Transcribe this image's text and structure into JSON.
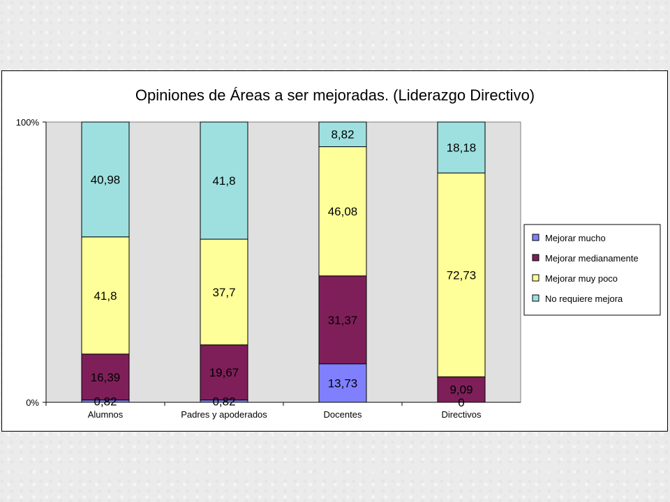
{
  "colors": {
    "plot_background": "#e0e0e0",
    "Mejorar mucho": "#8080ff",
    "Mejorar medianamente": "#7f1f5a",
    "Mejorar muy poco": "#ffff99",
    "No requiere mejora": "#9ee0e0"
  },
  "chart_data": {
    "type": "bar",
    "stacking": "percent",
    "title": "Opiniones de Áreas a ser mejoradas. (Liderazgo Directivo)",
    "xlabel": "",
    "ylabel": "",
    "ylim": [
      0,
      100
    ],
    "y_ticks": [
      "0%",
      "100%"
    ],
    "grid": false,
    "legend_position": "right",
    "categories": [
      "Alumnos",
      "Padres y apoderados",
      "Docentes",
      "Directivos"
    ],
    "series": [
      {
        "name": "Mejorar mucho",
        "values": [
          0.82,
          0.82,
          13.73,
          0
        ],
        "labels": [
          "0,82",
          "0,82",
          "13,73",
          "0"
        ]
      },
      {
        "name": "Mejorar medianamente",
        "values": [
          16.39,
          19.67,
          31.37,
          9.09
        ],
        "labels": [
          "16,39",
          "19,67",
          "31,37",
          "9,09"
        ]
      },
      {
        "name": "Mejorar muy poco",
        "values": [
          41.8,
          37.7,
          46.08,
          72.73
        ],
        "labels": [
          "41,8",
          "37,7",
          "46,08",
          "72,73"
        ]
      },
      {
        "name": "No requiere mejora",
        "values": [
          40.98,
          41.8,
          8.82,
          18.18
        ],
        "labels": [
          "40,98",
          "41,8",
          "8,82",
          "18,18"
        ]
      }
    ]
  }
}
